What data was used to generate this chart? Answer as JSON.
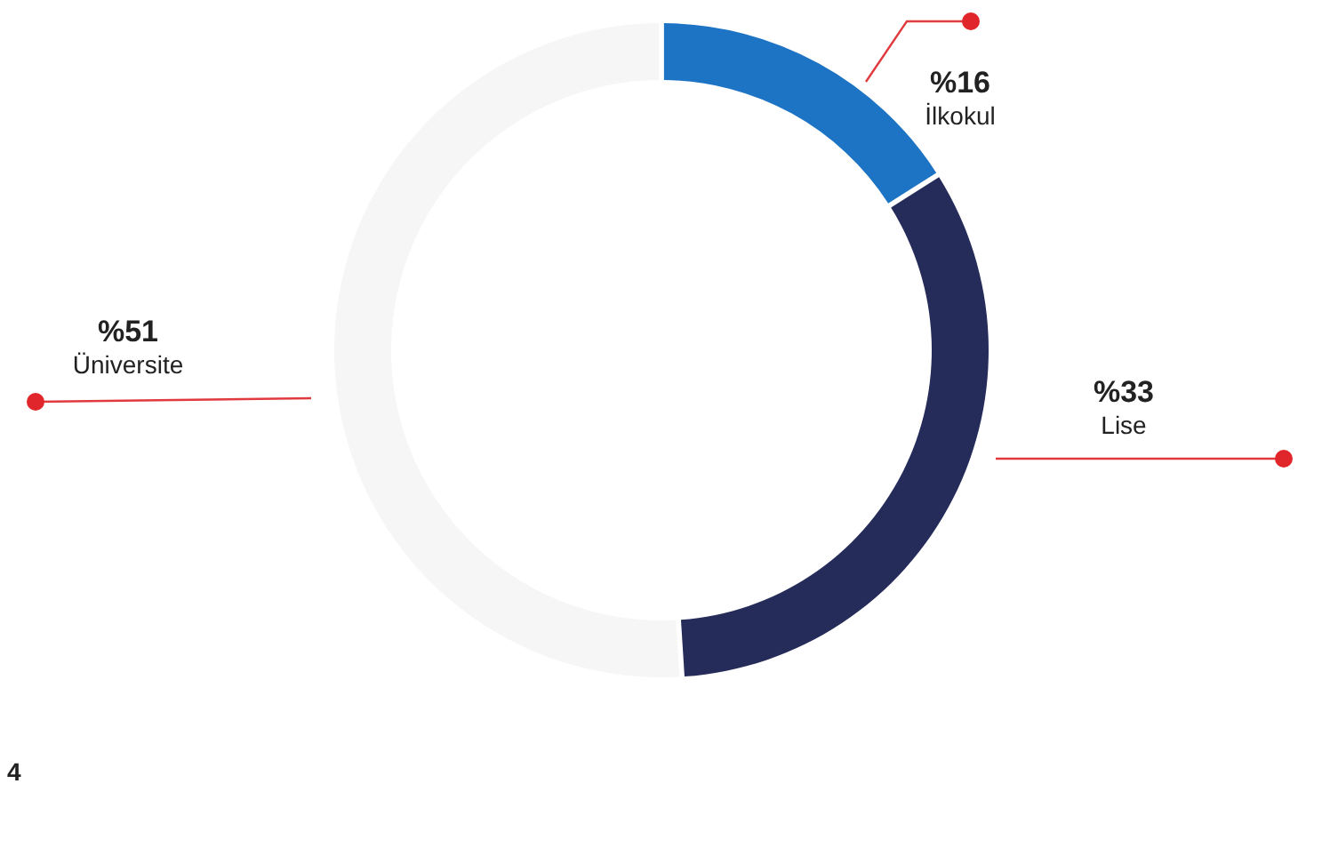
{
  "chart_data": {
    "type": "donut",
    "categories": [
      "İlkokul",
      "Lise",
      "Üniversite"
    ],
    "values": [
      16,
      33,
      51
    ],
    "value_labels": [
      "%16",
      "%33",
      "%51"
    ],
    "colors": [
      "#1d74c4",
      "#252c5a",
      "#f6f6f7"
    ],
    "legend": false,
    "annotations": [
      "4"
    ]
  }
}
